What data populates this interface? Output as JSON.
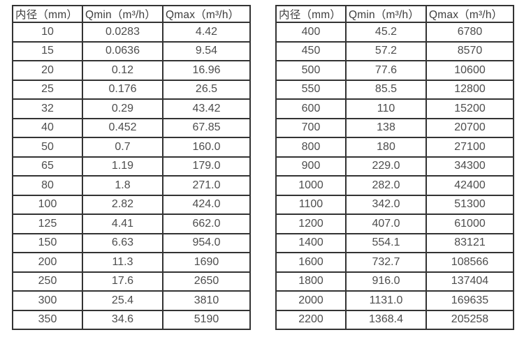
{
  "colors": {
    "border": "#333333",
    "cell_text": "#4d4d4d",
    "header_text": "#3d3d3d",
    "background": "#ffffff"
  },
  "tables": [
    {
      "name": "flow-rates-small-diameters",
      "headers": [
        "内径（mm）",
        "Qmin（m³/h）",
        "Qmax（m³/h）"
      ],
      "rows": [
        [
          "10",
          "0.0283",
          "4.42"
        ],
        [
          "15",
          "0.0636",
          "9.54"
        ],
        [
          "20",
          "0.12",
          "16.96"
        ],
        [
          "25",
          "0.176",
          "26.5"
        ],
        [
          "32",
          "0.29",
          "43.42"
        ],
        [
          "40",
          "0.452",
          "67.85"
        ],
        [
          "50",
          "0.7",
          "160.0"
        ],
        [
          "65",
          "1.19",
          "179.0"
        ],
        [
          "80",
          "1.8",
          "271.0"
        ],
        [
          "100",
          "2.82",
          "424.0"
        ],
        [
          "125",
          "4.41",
          "662.0"
        ],
        [
          "150",
          "6.63",
          "954.0"
        ],
        [
          "200",
          "11.3",
          "1690"
        ],
        [
          "250",
          "17.6",
          "2650"
        ],
        [
          "300",
          "25.4",
          "3810"
        ],
        [
          "350",
          "34.6",
          "5190"
        ]
      ]
    },
    {
      "name": "flow-rates-large-diameters",
      "headers": [
        "内径（mm）",
        "Qmin（m³/h）",
        "Qmax（m³/h）"
      ],
      "rows": [
        [
          "400",
          "45.2",
          "6780"
        ],
        [
          "450",
          "57.2",
          "8570"
        ],
        [
          "500",
          "77.6",
          "10600"
        ],
        [
          "550",
          "85.5",
          "12800"
        ],
        [
          "600",
          "110",
          "15200"
        ],
        [
          "700",
          "138",
          "20700"
        ],
        [
          "800",
          "180",
          "27100"
        ],
        [
          "900",
          "229.0",
          "34300"
        ],
        [
          "1000",
          "282.0",
          "42400"
        ],
        [
          "1100",
          "342.0",
          "51300"
        ],
        [
          "1200",
          "407.0",
          "61000"
        ],
        [
          "1400",
          "554.1",
          "83121"
        ],
        [
          "1600",
          "732.7",
          "108566"
        ],
        [
          "1800",
          "916.0",
          "137404"
        ],
        [
          "2000",
          "1131.0",
          "169635"
        ],
        [
          "2200",
          "1368.4",
          "205258"
        ]
      ]
    }
  ]
}
